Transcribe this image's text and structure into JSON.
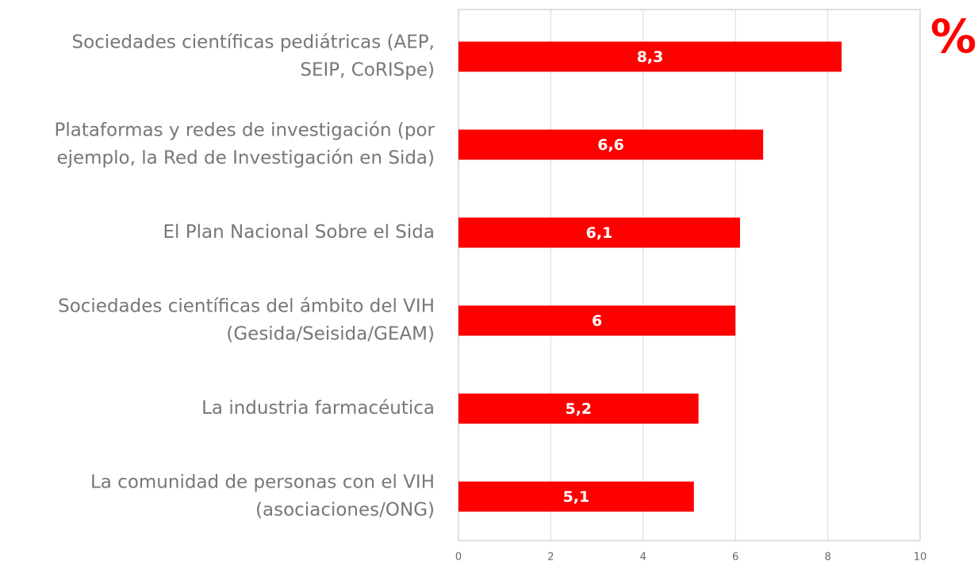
{
  "chart_data": {
    "type": "barh",
    "title": "%",
    "categories": [
      [
        "Sociedades científicas pediátricas (AEP,",
        "SEIP, CoRISpe)"
      ],
      [
        "Plataformas y redes de investigación (por",
        "ejemplo, la Red de Investigación en Sida)"
      ],
      [
        "El Plan Nacional Sobre el Sida"
      ],
      [
        "Sociedades científicas del ámbito del VIH",
        "(Gesida/Seisida/GEAM)"
      ],
      [
        "La industria farmacéutica"
      ],
      [
        "La comunidad de personas con el VIH",
        "(asociaciones/ONG)"
      ]
    ],
    "values": [
      8.3,
      6.6,
      6.1,
      6,
      5.2,
      5.1
    ],
    "value_labels": [
      "8,3",
      "6,6",
      "6,1",
      "6",
      "5,2",
      "5,1"
    ],
    "color": "#ff0000",
    "xlim": [
      0,
      10
    ],
    "xticks": [
      0,
      2,
      4,
      6,
      8,
      10
    ],
    "grid": true
  }
}
